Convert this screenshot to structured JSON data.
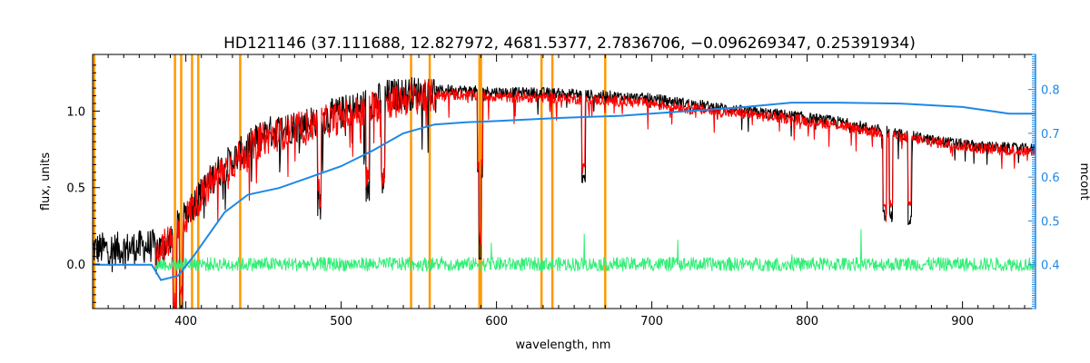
{
  "chart_data": {
    "type": "line",
    "title": "HD121146    (37.111688, 12.827972, 4681.5377, 2.7836706, −0.096269347, 0.25391934)",
    "xlabel": "wavelength, nm",
    "ylabel": "flux, units",
    "y2label": "mcont",
    "xlim": [
      340,
      947
    ],
    "ylim": [
      -0.29,
      1.37
    ],
    "y2lim": [
      0.3,
      0.88
    ],
    "x_ticks": [
      400,
      500,
      600,
      700,
      800,
      900
    ],
    "y_ticks": [
      0.0,
      0.5,
      1.0
    ],
    "y_tick_labels": [
      "0.0",
      "0.5",
      "1.0"
    ],
    "y2_ticks": [
      0.4,
      0.5,
      0.6,
      0.7,
      0.8
    ],
    "y2_tick_labels": [
      "0.4",
      "0.5",
      "0.6",
      "0.7",
      "0.8"
    ],
    "grid": false,
    "legend": "none",
    "vertical_lines": [
      341,
      393,
      397,
      404,
      408,
      435,
      545,
      557,
      589,
      590,
      629,
      636,
      670
    ],
    "series": [
      {
        "color": "#000000",
        "x": [
          340,
          360,
          378,
          385,
          395,
          405,
          420,
          435,
          450,
          470,
          490,
          510,
          530,
          550,
          570,
          590,
          610,
          630,
          650,
          670,
          700,
          730,
          760,
          790,
          820,
          850,
          880,
          910,
          947
        ],
        "y": [
          0.1,
          0.1,
          0.12,
          0.1,
          0.25,
          0.4,
          0.6,
          0.72,
          0.85,
          0.9,
          0.96,
          1.02,
          1.1,
          1.12,
          1.14,
          1.13,
          1.12,
          1.12,
          1.11,
          1.1,
          1.08,
          1.04,
          1.0,
          0.97,
          0.93,
          0.87,
          0.81,
          0.77,
          0.75
        ]
      },
      {
        "color": "#ff0000",
        "x": [
          380,
          395,
          405,
          420,
          435,
          450,
          470,
          490,
          510,
          530,
          550,
          570,
          590,
          610,
          630,
          650,
          670,
          700,
          730,
          760,
          790,
          820,
          850,
          880,
          910,
          947
        ],
        "y": [
          0.05,
          0.22,
          0.38,
          0.58,
          0.7,
          0.82,
          0.88,
          0.93,
          0.99,
          1.06,
          1.09,
          1.11,
          1.1,
          1.09,
          1.09,
          1.08,
          1.07,
          1.05,
          1.01,
          0.98,
          0.95,
          0.91,
          0.85,
          0.8,
          0.76,
          0.73
        ]
      },
      {
        "color": "#33ee77",
        "x": [
          380,
          947
        ],
        "y": [
          0.0,
          0.0
        ]
      },
      {
        "color": "#1e88e5",
        "axis": "right",
        "x": [
          340,
          378,
          384,
          395,
          405,
          415,
          425,
          440,
          460,
          480,
          500,
          520,
          540,
          560,
          580,
          600,
          640,
          680,
          720,
          760,
          790,
          820,
          860,
          900,
          920,
          930,
          947
        ],
        "y": [
          0.4,
          0.4,
          0.365,
          0.375,
          0.42,
          0.47,
          0.52,
          0.56,
          0.575,
          0.6,
          0.625,
          0.66,
          0.7,
          0.72,
          0.725,
          0.728,
          0.735,
          0.74,
          0.75,
          0.76,
          0.77,
          0.77,
          0.768,
          0.76,
          0.75,
          0.745,
          0.745
        ]
      }
    ]
  }
}
